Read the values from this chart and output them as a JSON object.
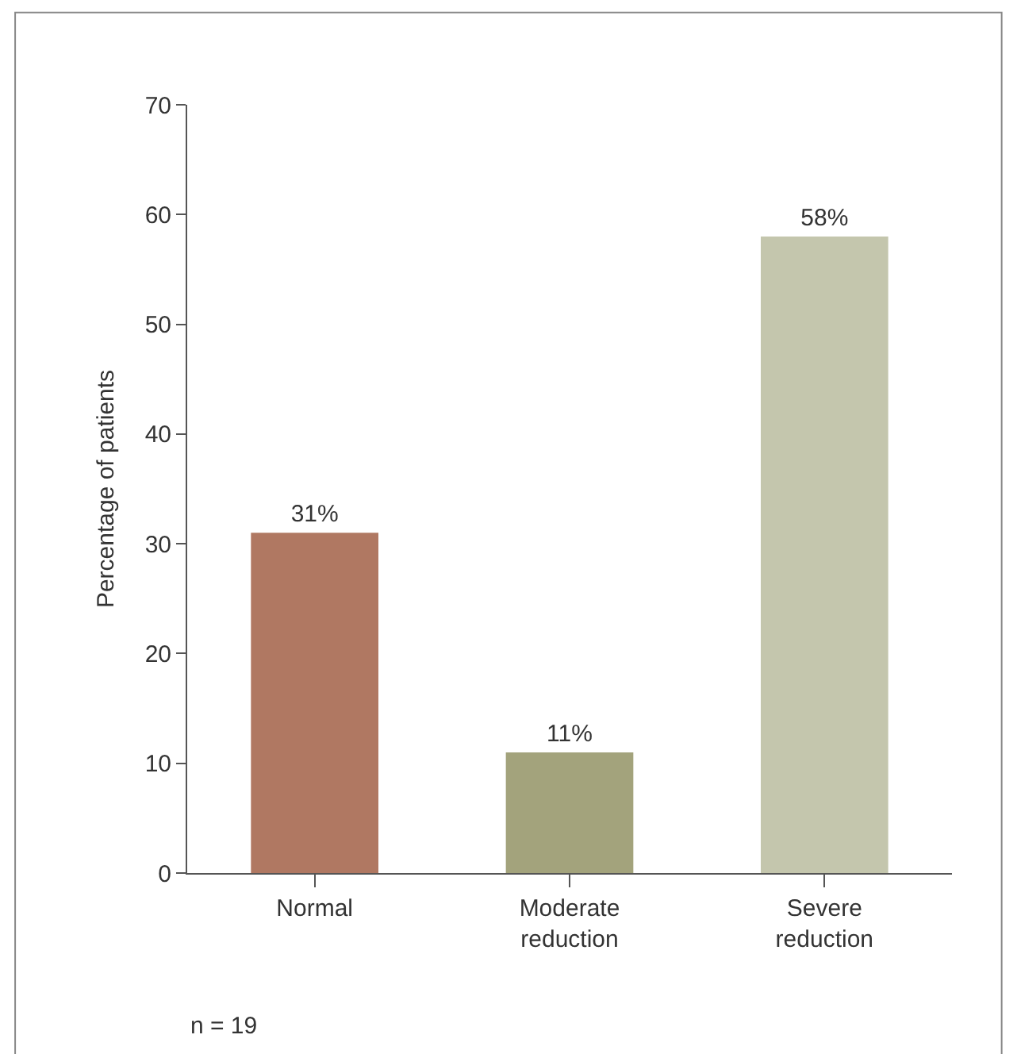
{
  "chart_data": {
    "type": "bar",
    "ylabel": "Percentage of patients",
    "categories": [
      "Normal",
      "Moderate\nreduction",
      "Severe\nreduction"
    ],
    "values": [
      31,
      11,
      58
    ],
    "colors": [
      "#b07862",
      "#a3a37c",
      "#c4c6ad"
    ],
    "value_labels": [
      "31%",
      "11%",
      "58%"
    ],
    "ylim": [
      0,
      70
    ],
    "yticks": [
      0,
      10,
      20,
      30,
      40,
      50,
      60,
      70
    ],
    "annotations": [
      "n = 19"
    ]
  }
}
